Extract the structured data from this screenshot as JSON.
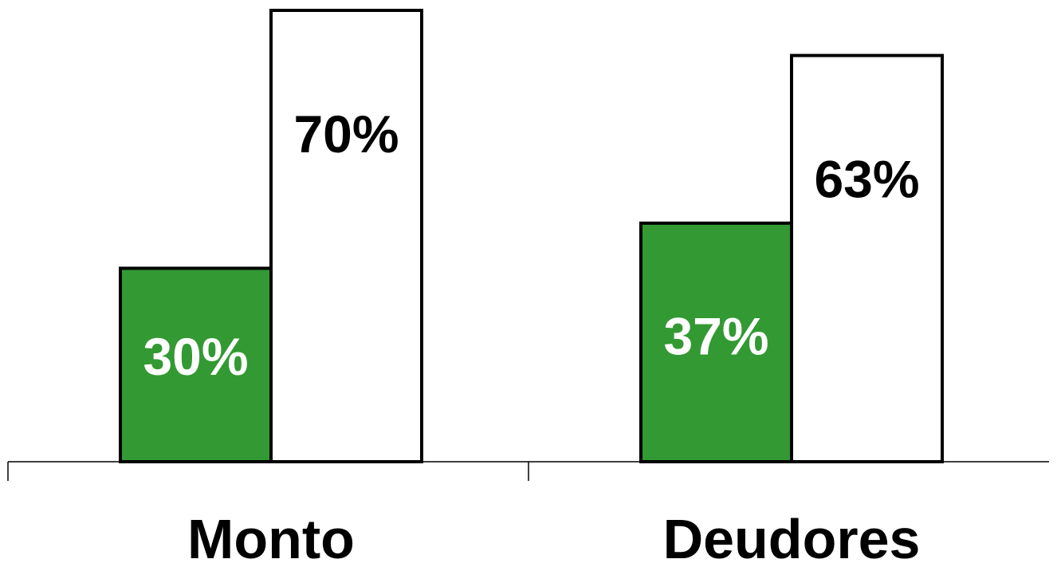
{
  "chart_data": {
    "type": "bar",
    "categories": [
      "Monto",
      "Deudores"
    ],
    "series": [
      {
        "values": [
          30,
          37
        ],
        "labels": [
          "30%",
          "37%"
        ],
        "color": "#339933",
        "label_color": "#ffffff"
      },
      {
        "values": [
          70,
          63
        ],
        "labels": [
          "70%",
          "63%"
        ],
        "color": "#ffffff",
        "label_color": "#000000"
      }
    ],
    "ylim": [
      0,
      70
    ],
    "grid": false,
    "legend": "none",
    "axis_color": "#000000"
  }
}
